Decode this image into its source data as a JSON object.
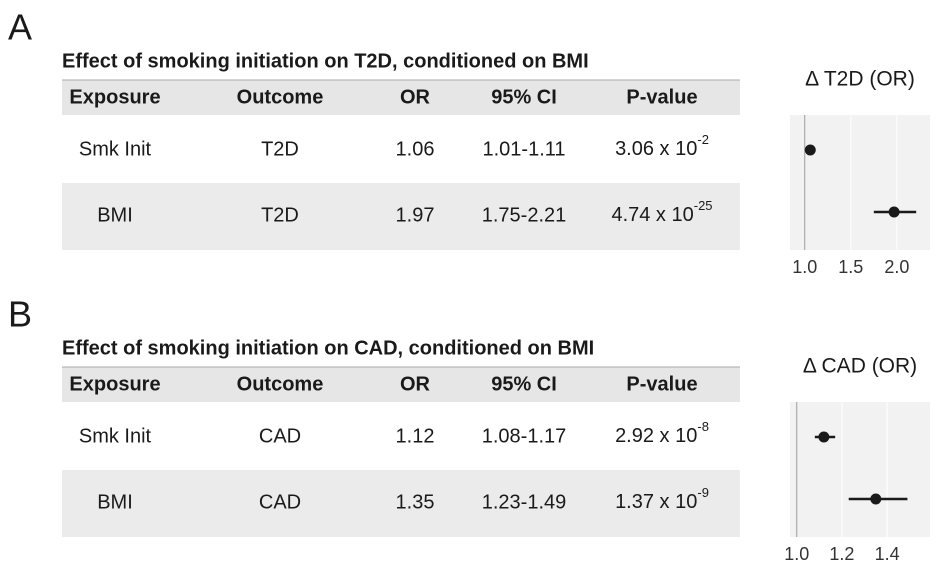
{
  "panels": [
    {
      "label": "A",
      "title": "Effect of smoking initiation on T2D, conditioned on BMI",
      "header": [
        "Exposure",
        "Outcome",
        "OR",
        "95% CI",
        "P-value"
      ],
      "rows": [
        [
          "Smk Init",
          "T2D",
          "1.06",
          "1.01-1.11",
          {
            "base": "3.06 x 10",
            "exp": "-2"
          }
        ],
        [
          "BMI",
          "T2D",
          "1.97",
          "1.75-2.21",
          {
            "base": "4.74 x 10",
            "exp": "-25"
          }
        ]
      ]
    },
    {
      "label": "B",
      "title": "Effect of smoking initiation on CAD, conditioned on BMI",
      "header": [
        "Exposure",
        "Outcome",
        "OR",
        "95% CI",
        "P-value"
      ],
      "rows": [
        [
          "Smk Init",
          "CAD",
          "1.12",
          "1.08-1.17",
          {
            "base": "2.92 x 10",
            "exp": "-8"
          }
        ],
        [
          "BMI",
          "CAD",
          "1.35",
          "1.23-1.49",
          {
            "base": "1.37 x 10",
            "exp": "-9"
          }
        ]
      ]
    }
  ],
  "chart_data": [
    {
      "type": "forest",
      "title": "Δ T2D (OR)",
      "values": [
        1.06,
        1.97
      ],
      "lower": [
        1.01,
        1.75
      ],
      "upper": [
        1.11,
        2.21
      ],
      "xlim": [
        0.84,
        2.36
      ],
      "xticks": [
        {
          "value": 1,
          "label": "1.0"
        },
        {
          "value": 1.5,
          "label": "1.5"
        },
        {
          "value": 2,
          "label": "2.0"
        }
      ],
      "reference_line": 1,
      "color": "#1a1a1a"
    },
    {
      "type": "forest",
      "title": "Δ CAD (OR)",
      "values": [
        1.12,
        1.35
      ],
      "lower": [
        1.08,
        1.23
      ],
      "upper": [
        1.17,
        1.49
      ],
      "xlim": [
        0.97,
        1.59
      ],
      "xticks": [
        {
          "value": 1,
          "label": "1.0"
        },
        {
          "value": 1.2,
          "label": "1.2"
        },
        {
          "value": 1.4,
          "label": "1.4"
        }
      ],
      "reference_line": 1,
      "color": "#1a1a1a"
    }
  ]
}
